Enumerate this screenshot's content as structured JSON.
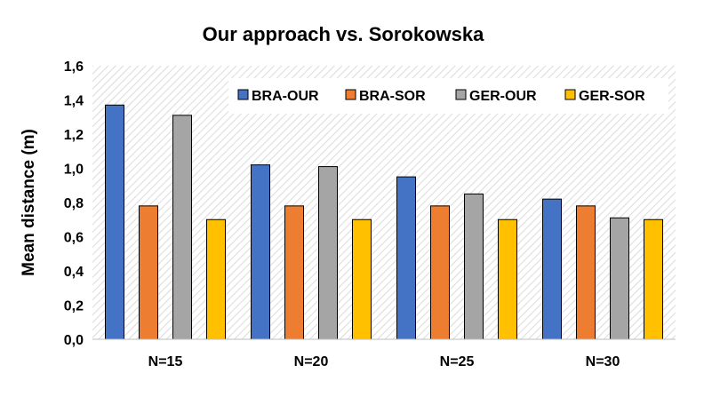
{
  "chart_data": {
    "type": "bar",
    "title": "Our approach vs. Sorokowska",
    "xlabel": "",
    "ylabel": "Mean distance (m)",
    "categories": [
      "N=15",
      "N=20",
      "N=25",
      "N=30"
    ],
    "ylim": [
      0,
      1.6
    ],
    "yticks": [
      "0,0",
      "0,2",
      "0,4",
      "0,6",
      "0,8",
      "1,0",
      "1,2",
      "1,4",
      "1,6"
    ],
    "ytick_values": [
      0,
      0.2,
      0.4,
      0.6,
      0.8,
      1.0,
      1.2,
      1.4,
      1.6
    ],
    "legend_position": "top-right",
    "grid": false,
    "series": [
      {
        "name": "BRA-OUR",
        "color": "#4472C4",
        "values": [
          1.37,
          1.02,
          0.95,
          0.82
        ]
      },
      {
        "name": "BRA-SOR",
        "color": "#ED7D31",
        "values": [
          0.78,
          0.78,
          0.78,
          0.78
        ]
      },
      {
        "name": "GER-OUR",
        "color": "#A5A5A5",
        "values": [
          1.31,
          1.01,
          0.85,
          0.71
        ]
      },
      {
        "name": "GER-SOR",
        "color": "#FFC000",
        "values": [
          0.7,
          0.7,
          0.7,
          0.7
        ]
      }
    ]
  }
}
